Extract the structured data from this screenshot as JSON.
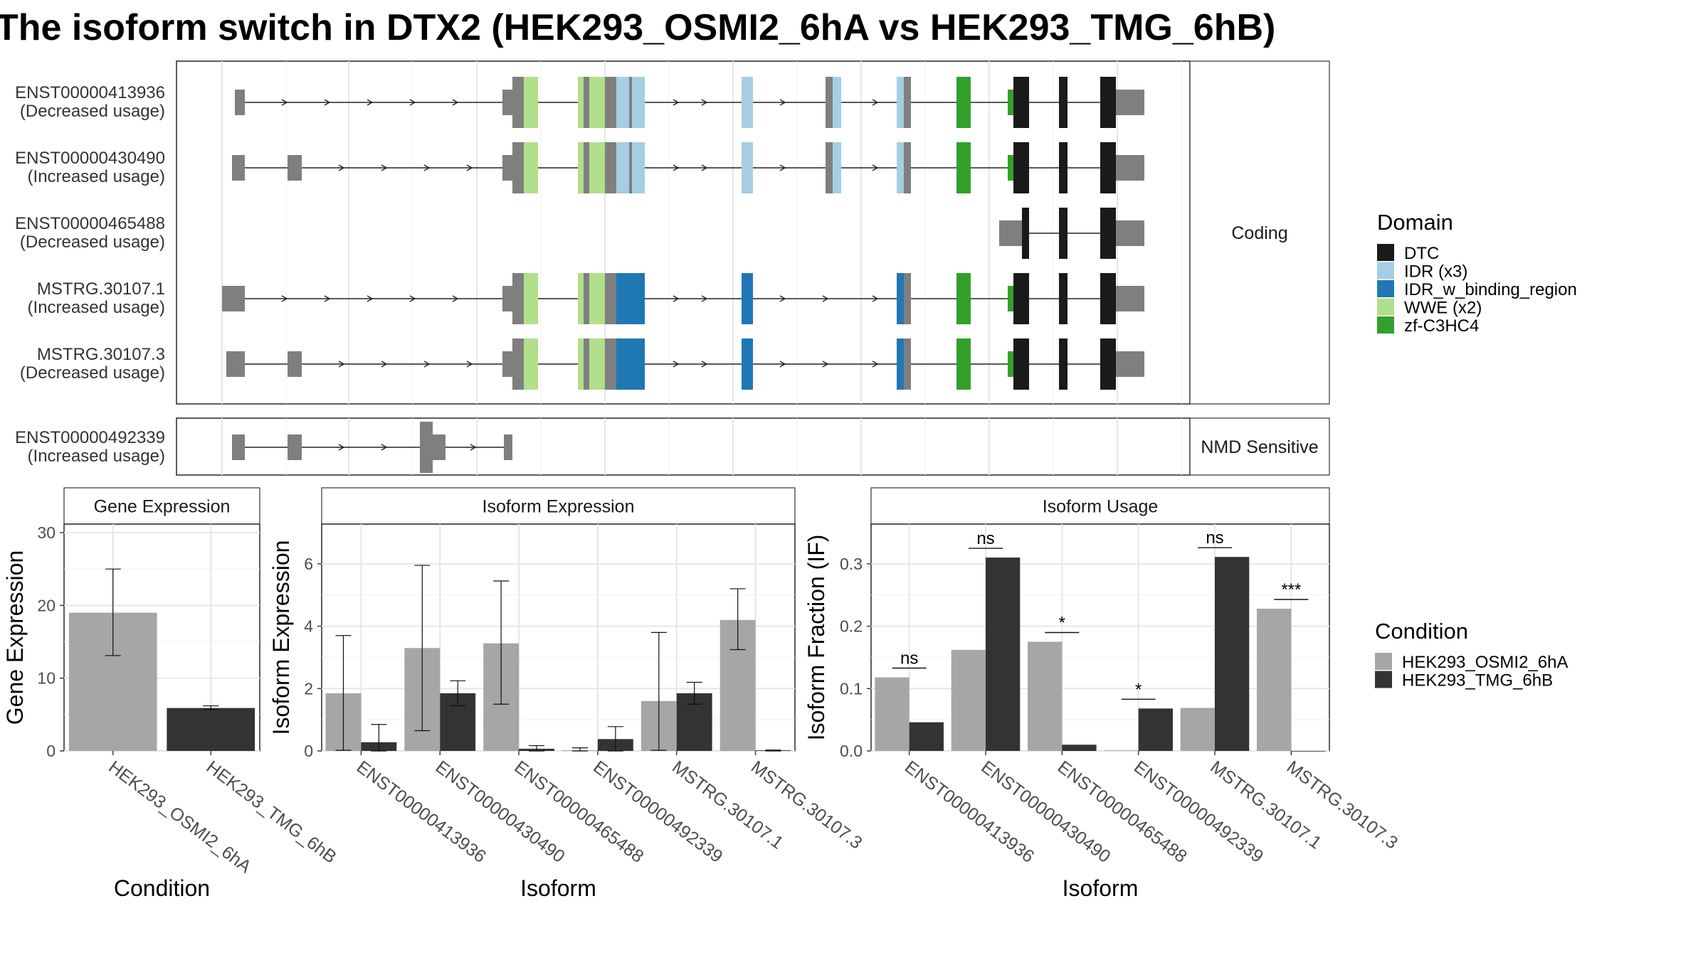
{
  "title": "The isoform switch in DTX2 (HEK293_OSMI2_6hA vs HEK293_TMG_6hB)",
  "structure": {
    "facets": [
      "Coding",
      "NMD Sensitive"
    ],
    "transcripts": [
      {
        "id": "ENST00000413936",
        "change": "(Decreased usage)",
        "facet": "Coding"
      },
      {
        "id": "ENST00000430490",
        "change": "(Increased usage)",
        "facet": "Coding"
      },
      {
        "id": "ENST00000465488",
        "change": "(Decreased usage)",
        "facet": "Coding"
      },
      {
        "id": "MSTRG.30107.1",
        "change": "(Increased usage)",
        "facet": "Coding"
      },
      {
        "id": "MSTRG.30107.3",
        "change": "(Decreased usage)",
        "facet": "Coding"
      },
      {
        "id": "ENST00000492339",
        "change": "(Increased usage)",
        "facet": "NMD Sensitive"
      }
    ]
  },
  "domain_legend": {
    "title": "Domain",
    "items": [
      {
        "label": "DTC",
        "color": "#1a1a1a"
      },
      {
        "label": "IDR (x3)",
        "color": "#a6cee3"
      },
      {
        "label": "IDR_w_binding_region",
        "color": "#1f78b4"
      },
      {
        "label": "WWE (x2)",
        "color": "#b2df8a"
      },
      {
        "label": "zf-C3HC4",
        "color": "#33a02c"
      }
    ]
  },
  "condition_legend": {
    "title": "Condition",
    "items": [
      {
        "label": "HEK293_OSMI2_6hA",
        "color": "#a6a6a6"
      },
      {
        "label": "HEK293_TMG_6hB",
        "color": "#333333"
      }
    ]
  },
  "chart_data": [
    {
      "type": "bar",
      "title": "Gene Expression",
      "xlabel": "Condition",
      "ylabel": "Gene Expression",
      "ylim": [
        0,
        30
      ],
      "yticks": [
        0,
        10,
        20,
        30
      ],
      "categories": [
        "HEK293_OSMI2_6hA",
        "HEK293_TMG_6hB"
      ],
      "values": [
        19.0,
        5.9
      ],
      "errors": [
        [
          13.1,
          25.0
        ],
        [
          5.7,
          6.2
        ]
      ],
      "colors": [
        "#a6a6a6",
        "#333333"
      ]
    },
    {
      "type": "bar",
      "title": "Isoform Expression",
      "xlabel": "Isoform",
      "ylabel": "Isoform Expression",
      "ylim": [
        0,
        7
      ],
      "yticks": [
        0,
        2,
        4,
        6
      ],
      "categories": [
        "ENST00000413936",
        "ENST00000430490",
        "ENST00000465488",
        "ENST00000492339",
        "MSTRG.30107.1",
        "MSTRG.30107.3"
      ],
      "series": [
        {
          "name": "HEK293_OSMI2_6hA",
          "values": [
            1.85,
            3.3,
            3.45,
            0.02,
            1.6,
            4.2
          ],
          "errors": [
            [
              0.02,
              3.7
            ],
            [
              0.65,
              5.95
            ],
            [
              1.5,
              5.45
            ],
            [
              0.0,
              0.1
            ],
            [
              0.02,
              3.8
            ],
            [
              3.25,
              5.2
            ]
          ]
        },
        {
          "name": "HEK293_TMG_6hB",
          "values": [
            0.28,
            1.85,
            0.07,
            0.38,
            1.85,
            0.02
          ],
          "errors": [
            [
              0.0,
              0.85
            ],
            [
              1.45,
              2.25
            ],
            [
              0.0,
              0.17
            ],
            [
              0.0,
              0.78
            ],
            [
              1.5,
              2.2
            ],
            [
              0.0,
              0.03
            ]
          ]
        }
      ]
    },
    {
      "type": "bar",
      "title": "Isoform Usage",
      "xlabel": "Isoform",
      "ylabel": "Isoform Fraction (IF)",
      "ylim": [
        0,
        0.35
      ],
      "yticks": [
        "0.0",
        "0.1",
        "0.2",
        "0.3"
      ],
      "categories": [
        "ENST00000413936",
        "ENST00000430490",
        "ENST00000465488",
        "ENST00000492339",
        "MSTRG.30107.1",
        "MSTRG.30107.3"
      ],
      "series": [
        {
          "name": "HEK293_OSMI2_6hA",
          "values": [
            0.118,
            0.162,
            0.175,
            0.001,
            0.069,
            0.228
          ]
        },
        {
          "name": "HEK293_TMG_6hB",
          "values": [
            0.046,
            0.31,
            0.01,
            0.068,
            0.311,
            0.0
          ]
        }
      ],
      "significance": [
        "ns",
        "ns",
        "*",
        "*",
        "ns",
        "***"
      ]
    }
  ]
}
